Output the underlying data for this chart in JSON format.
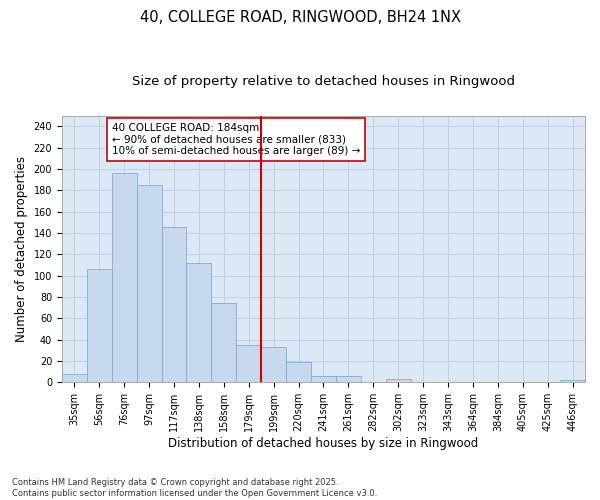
{
  "title_line1": "40, COLLEGE ROAD, RINGWOOD, BH24 1NX",
  "title_line2": "Size of property relative to detached houses in Ringwood",
  "xlabel": "Distribution of detached houses by size in Ringwood",
  "ylabel": "Number of detached properties",
  "bar_color": "#c6d9ee",
  "bar_edge_color": "#7aafd4",
  "vline_color": "#cc0000",
  "annotation_text": "40 COLLEGE ROAD: 184sqm\n← 90% of detached houses are smaller (833)\n10% of semi-detached houses are larger (89) →",
  "annotation_box_color": "#ffffff",
  "annotation_box_edge": "#cc0000",
  "categories": [
    "35sqm",
    "56sqm",
    "76sqm",
    "97sqm",
    "117sqm",
    "138sqm",
    "158sqm",
    "179sqm",
    "199sqm",
    "220sqm",
    "241sqm",
    "261sqm",
    "282sqm",
    "302sqm",
    "323sqm",
    "343sqm",
    "364sqm",
    "384sqm",
    "405sqm",
    "425sqm",
    "446sqm"
  ],
  "values": [
    8,
    106,
    196,
    185,
    146,
    112,
    74,
    35,
    33,
    19,
    6,
    6,
    0,
    3,
    0,
    0,
    0,
    0,
    0,
    0,
    2
  ],
  "ylim": [
    0,
    250
  ],
  "yticks": [
    0,
    20,
    40,
    60,
    80,
    100,
    120,
    140,
    160,
    180,
    200,
    220,
    240
  ],
  "grid_color": "#c0ccd8",
  "background_color": "#dce8f5",
  "footer": "Contains HM Land Registry data © Crown copyright and database right 2025.\nContains public sector information licensed under the Open Government Licence v3.0.",
  "title_fontsize": 10.5,
  "subtitle_fontsize": 9.5,
  "tick_fontsize": 7,
  "label_fontsize": 8.5,
  "annotation_fontsize": 7.5,
  "footer_fontsize": 6
}
